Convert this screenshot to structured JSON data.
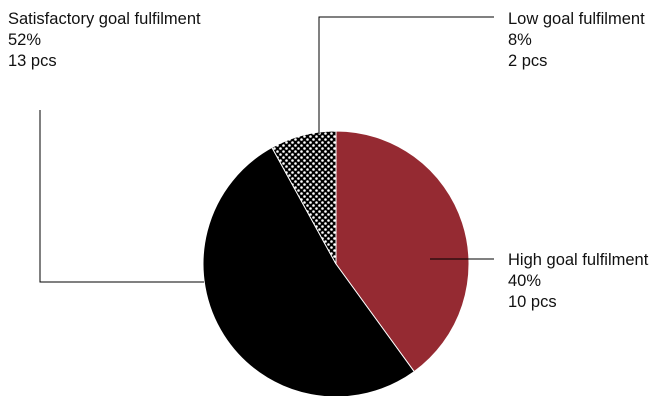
{
  "chart_data": {
    "type": "pie",
    "start_angle_deg": 0,
    "direction": "clockwise",
    "legend": "none",
    "slices": [
      {
        "key": "high",
        "label": "High goal fulfilment",
        "percent": 40,
        "percent_label": "40%",
        "count": 10,
        "count_label": "10 pcs",
        "color": "#952A32",
        "pattern": "solid"
      },
      {
        "key": "satisfactory",
        "label": "Satisfactory goal fulfilment",
        "percent": 52,
        "percent_label": "52%",
        "count": 13,
        "count_label": "13 pcs",
        "color": "#000000",
        "pattern": "solid"
      },
      {
        "key": "low",
        "label": "Low goal fulfilment",
        "percent": 8,
        "percent_label": "8%",
        "count": 2,
        "count_label": "2 pcs",
        "color": "#000000",
        "pattern": "white-dots-on-black"
      }
    ]
  }
}
